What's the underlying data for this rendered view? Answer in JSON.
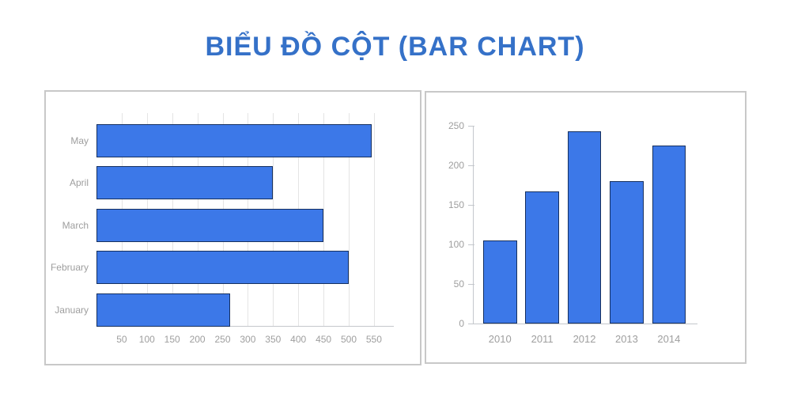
{
  "page": {
    "title": "BIỂU ĐỒ CỘT (BAR CHART)",
    "background": "#FFFFFF",
    "title_color": "#3571C8"
  },
  "colors": {
    "bar_fill": "#3C78E8",
    "bar_border": "#16305F",
    "gridline": "#E4E4E4",
    "axis_line": "#C4C7CC",
    "axis_label": "#9E9E9E",
    "panel_border": "#C8C8C8"
  },
  "chart_data": [
    {
      "id": "monthly-horizontal-bar-chart",
      "type": "bar",
      "orientation": "horizontal",
      "title": "",
      "categories_top_to_bottom": [
        "May",
        "April",
        "March",
        "February",
        "January"
      ],
      "values": [
        545,
        350,
        450,
        500,
        265
      ],
      "x_ticks": [
        50,
        100,
        150,
        200,
        250,
        300,
        350,
        400,
        450,
        500,
        550
      ],
      "xlim": [
        0,
        590
      ],
      "grid": true,
      "legend": "none"
    },
    {
      "id": "yearly-vertical-bar-chart",
      "type": "bar",
      "orientation": "vertical",
      "title": "",
      "categories": [
        "2010",
        "2011",
        "2012",
        "2013",
        "2014"
      ],
      "values": [
        105,
        167,
        243,
        180,
        225
      ],
      "y_ticks": [
        0,
        50,
        100,
        150,
        200,
        250
      ],
      "ylim": [
        0,
        250
      ],
      "grid": false,
      "legend": "none"
    }
  ]
}
